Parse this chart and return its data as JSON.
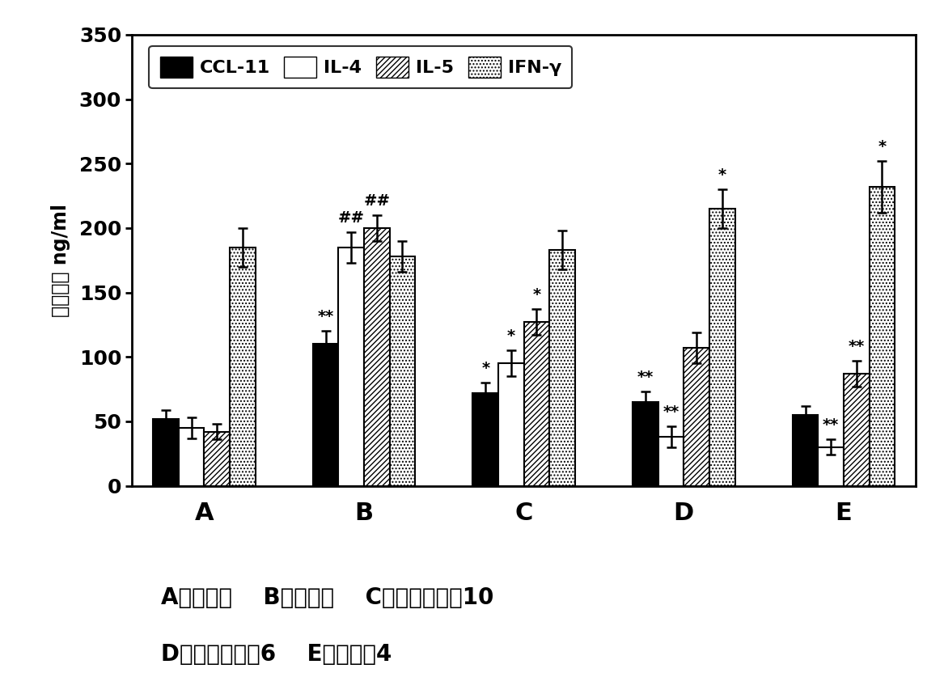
{
  "groups": [
    "A",
    "B",
    "C",
    "D",
    "E"
  ],
  "series": [
    "CCL-11",
    "IL-4",
    "IL-5",
    "IFN-γ"
  ],
  "values": [
    [
      52,
      45,
      42,
      185
    ],
    [
      110,
      185,
      200,
      178
    ],
    [
      72,
      95,
      127,
      183
    ],
    [
      65,
      38,
      107,
      215
    ],
    [
      55,
      30,
      87,
      232
    ]
  ],
  "errors": [
    [
      7,
      8,
      6,
      15
    ],
    [
      10,
      12,
      10,
      12
    ],
    [
      8,
      10,
      10,
      15
    ],
    [
      8,
      8,
      12,
      15
    ],
    [
      7,
      6,
      10,
      20
    ]
  ],
  "ylim": [
    0,
    350
  ],
  "yticks": [
    0,
    50,
    100,
    150,
    200,
    250,
    300,
    350
  ],
  "ylabel_chinese": "蛋白水平",
  "ylabel_english": "ng/ml",
  "caption_line1": "A：对照组    B：模型组    C：对照实施例10",
  "caption_line2": "D：对照实施例6    E：实施例4",
  "background_color": "#ffffff",
  "group_label_fontsize": 22,
  "ytick_fontsize": 18,
  "caption_fontsize": 20,
  "legend_fontsize": 16,
  "annot_fontsize": 14
}
